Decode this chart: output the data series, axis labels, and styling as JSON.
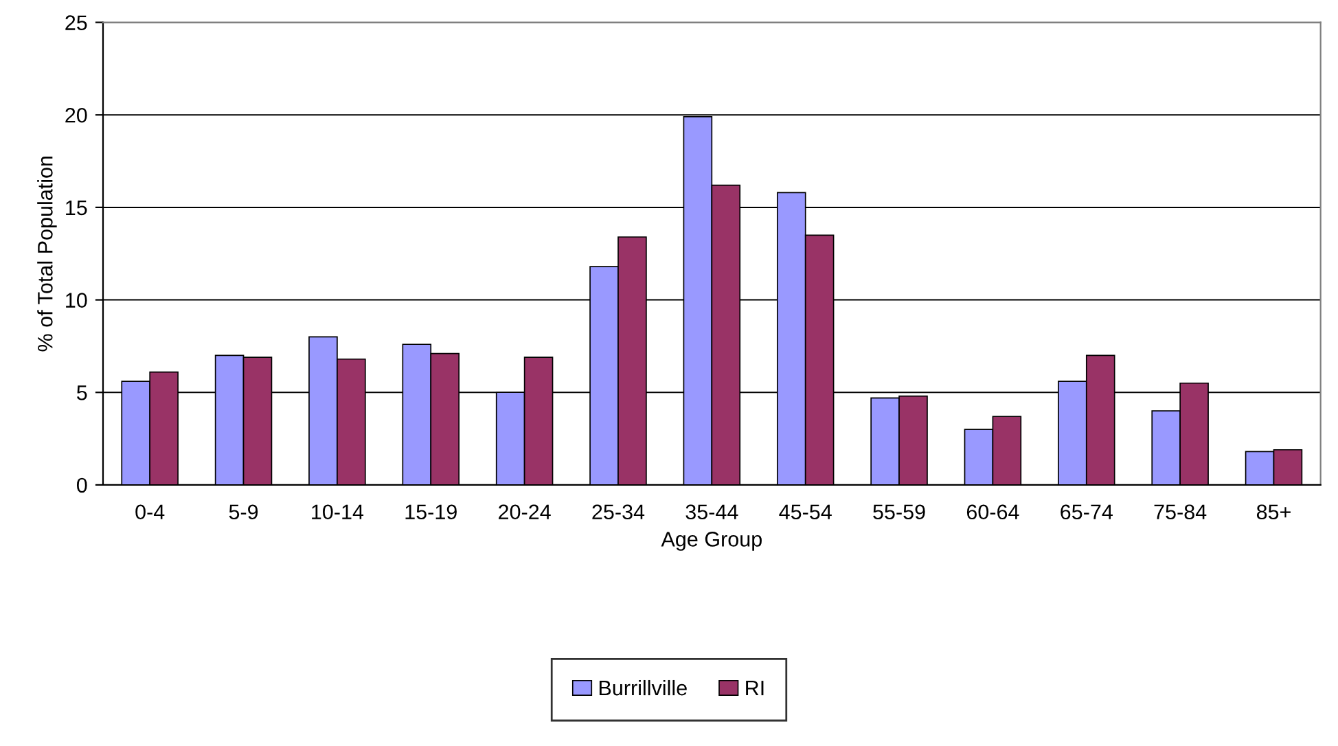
{
  "chart_data": {
    "type": "bar",
    "xlabel": "Age Group",
    "ylabel": "% of Total Population",
    "categories": [
      "0-4",
      "5-9",
      "10-14",
      "15-19",
      "20-24",
      "25-34",
      "35-44",
      "45-54",
      "55-59",
      "60-64",
      "65-74",
      "75-84",
      "85+"
    ],
    "series": [
      {
        "name": "Burrillville",
        "color": "#9999ff",
        "values": [
          5.6,
          7.0,
          8.0,
          7.6,
          5.0,
          11.8,
          19.9,
          15.8,
          4.7,
          3.0,
          5.6,
          4.0,
          1.8
        ]
      },
      {
        "name": "RI",
        "color": "#993366",
        "values": [
          6.1,
          6.9,
          6.8,
          7.1,
          6.9,
          13.4,
          16.2,
          13.5,
          4.8,
          3.7,
          7.0,
          5.5,
          1.9
        ]
      }
    ],
    "ylim": [
      0,
      25
    ],
    "yticks": [
      0,
      5,
      10,
      15,
      20,
      25
    ],
    "grid": "y",
    "legend": "bottom"
  }
}
